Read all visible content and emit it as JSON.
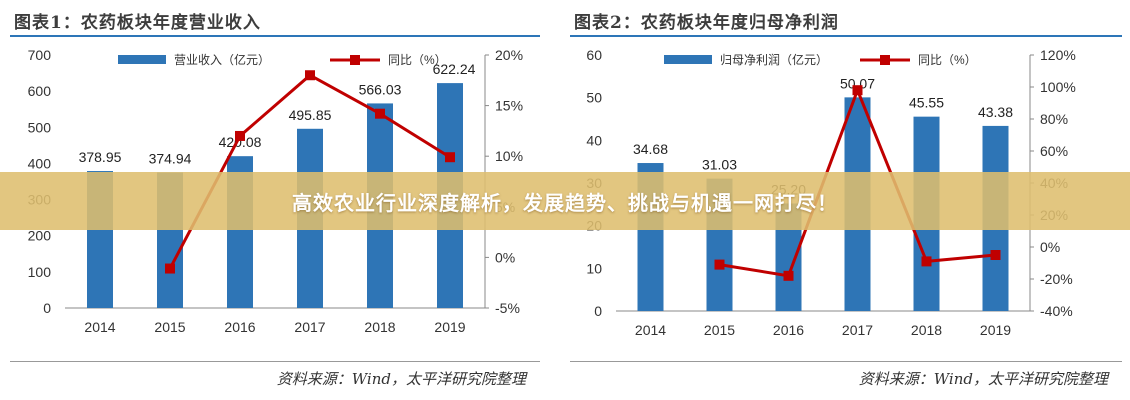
{
  "banner": {
    "text": "高效农业行业深度解析，发展趋势、挑战与机遇一网打尽！"
  },
  "colors": {
    "bar": "#2e75b6",
    "line": "#c00000",
    "axis": "#888888",
    "text": "#333333"
  },
  "chart_data": [
    {
      "type": "bar+line",
      "title": "图表1：农药板块年度营业收入",
      "source": "资料来源：Wind，太平洋研究院整理",
      "categories": [
        "2014",
        "2015",
        "2016",
        "2017",
        "2018",
        "2019"
      ],
      "series": [
        {
          "name": "营业收入（亿元）",
          "type": "bar",
          "axis": "left",
          "values": [
            378.95,
            374.94,
            420.08,
            495.85,
            566.03,
            622.24
          ],
          "labels": [
            "378.95",
            "374.94",
            "420.08",
            "495.85",
            "566.03",
            "622.24"
          ]
        },
        {
          "name": "同比（%）",
          "type": "line",
          "axis": "right",
          "values": [
            null,
            -1.1,
            12.0,
            18.0,
            14.2,
            9.9
          ]
        }
      ],
      "ylim_left": [
        0,
        700
      ],
      "yticks_left": [
        "0",
        "100",
        "200",
        "300",
        "400",
        "500",
        "600",
        "700"
      ],
      "ylim_right": [
        -5,
        20
      ],
      "yticks_right": [
        "-5%",
        "0%",
        "5%",
        "10%",
        "15%",
        "20%"
      ],
      "legend": "top"
    },
    {
      "type": "bar+line",
      "title": "图表2：农药板块年度归母净利润",
      "source": "资料来源：Wind，太平洋研究院整理",
      "categories": [
        "2014",
        "2015",
        "2016",
        "2017",
        "2018",
        "2019"
      ],
      "series": [
        {
          "name": "归母净利润（亿元）",
          "type": "bar",
          "axis": "left",
          "values": [
            34.68,
            31.03,
            25.2,
            50.07,
            45.55,
            43.38
          ],
          "labels": [
            "34.68",
            "31.03",
            "25.20",
            "50.07",
            "45.55",
            "43.38"
          ]
        },
        {
          "name": "同比（%）",
          "type": "line",
          "axis": "right",
          "values": [
            null,
            -11,
            -18,
            98,
            -9,
            -5
          ]
        }
      ],
      "ylim_left": [
        0,
        60
      ],
      "yticks_left": [
        "0",
        "10",
        "20",
        "30",
        "40",
        "50",
        "60"
      ],
      "ylim_right": [
        -40,
        120
      ],
      "yticks_right": [
        "-40%",
        "-20%",
        "0%",
        "20%",
        "40%",
        "60%",
        "80%",
        "100%",
        "120%"
      ],
      "legend": "top"
    }
  ]
}
